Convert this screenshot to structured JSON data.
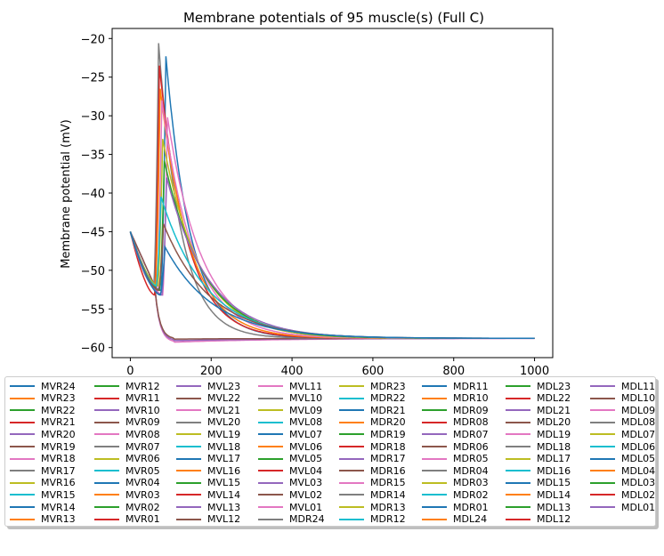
{
  "chart_data": {
    "type": "line",
    "title": "Membrane potentials of 95 muscle(s) (Full C)",
    "xlabel": "",
    "ylabel": "Membrane potential (mV)",
    "xlim": [
      -45,
      1045
    ],
    "ylim": [
      -61.3,
      -18.7
    ],
    "xticks": [
      0,
      200,
      400,
      600,
      800,
      1000
    ],
    "yticks": [
      -20,
      -25,
      -30,
      -35,
      -40,
      -45,
      -50,
      -55,
      -60
    ],
    "grid": false,
    "legend_position": "below",
    "legend_columns": 8,
    "legend_labels": [
      "MVR24",
      "MVR23",
      "MVR22",
      "MVR21",
      "MVR20",
      "MVR19",
      "MVR18",
      "MVR17",
      "MVR16",
      "MVR15",
      "MVR14",
      "MVR13",
      "MVR12",
      "MVR11",
      "MVR10",
      "MVR09",
      "MVR08",
      "MVR07",
      "MVR06",
      "MVR05",
      "MVR04",
      "MVR03",
      "MVR02",
      "MVR01",
      "MVL23",
      "MVL22",
      "MVL21",
      "MVL20",
      "MVL19",
      "MVL18",
      "MVL17",
      "MVL16",
      "MVL15",
      "MVL14",
      "MVL13",
      "MVL12",
      "MVL11",
      "MVL10",
      "MVL09",
      "MVL08",
      "MVL07",
      "MVL06",
      "MVL05",
      "MVL04",
      "MVL03",
      "MVL02",
      "MVL01",
      "MDR24",
      "MDR23",
      "MDR22",
      "MDR21",
      "MDR20",
      "MDR19",
      "MDR18",
      "MDR17",
      "MDR16",
      "MDR15",
      "MDR14",
      "MDR13",
      "MDR12",
      "MDR11",
      "MDR10",
      "MDR09",
      "MDR08",
      "MDR07",
      "MDR06",
      "MDR05",
      "MDR04",
      "MDR03",
      "MDR02",
      "MDR01",
      "MDL24",
      "MDL23",
      "MDL22",
      "MDL21",
      "MDL20",
      "MDL19",
      "MDL18",
      "MDL17",
      "MDL16",
      "MDL15",
      "MDL14",
      "MDL13",
      "MDL12",
      "MDL11",
      "MDL10",
      "MDL09",
      "MDL08",
      "MDL07",
      "MDL06",
      "MDL05",
      "MDL04",
      "MDL03",
      "MDL02",
      "MDL01"
    ],
    "color_cycle": [
      "#1f77b4",
      "#ff7f0e",
      "#2ca02c",
      "#d62728",
      "#9467bd",
      "#8c564b",
      "#e377c2",
      "#7f7f7f",
      "#bcbd22",
      "#17becf"
    ],
    "x_start": 0,
    "x_end": 1000,
    "start_value": -45,
    "steady_value": -58.8,
    "representative_series": [
      {
        "peak_x": 70,
        "peak_y": -20.6,
        "color": "#7f7f7f"
      },
      {
        "peak_x": 88,
        "peak_y": -22.3,
        "color": "#1f77b4"
      },
      {
        "peak_x": 72,
        "peak_y": -23.5,
        "color": "#d62728"
      },
      {
        "peak_x": 74,
        "peak_y": -26.5,
        "color": "#ff7f0e"
      },
      {
        "peak_x": 78,
        "peak_y": -28.0,
        "color": "#e377c2"
      },
      {
        "peak_x": 92,
        "peak_y": -30.2,
        "color": "#e377c2"
      },
      {
        "peak_x": 80,
        "peak_y": -33.0,
        "color": "#bcbd22"
      },
      {
        "peak_x": 84,
        "peak_y": -35.8,
        "color": "#2ca02c"
      },
      {
        "peak_x": 90,
        "peak_y": -38.0,
        "color": "#9467bd"
      },
      {
        "peak_x": 76,
        "peak_y": -40.5,
        "color": "#17becf"
      },
      {
        "peak_x": 82,
        "peak_y": -44.0,
        "color": "#8c564b"
      },
      {
        "peak_x": 86,
        "peak_y": -47.0,
        "color": "#1f77b4"
      }
    ],
    "low_branch_series": [
      {
        "min_y": -59.3,
        "color": "#e377c2"
      },
      {
        "min_y": -59.1,
        "color": "#9467bd"
      },
      {
        "min_y": -58.9,
        "color": "#8c564b"
      }
    ]
  }
}
